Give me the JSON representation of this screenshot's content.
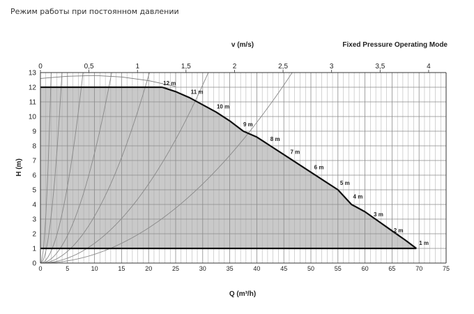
{
  "page_title": "Режим работы при постоянном давлении",
  "chart_data": {
    "type": "line",
    "title": "Fixed Pressure Operating Mode",
    "xlabel": "Q (m³/h)",
    "ylabel": "H (m)",
    "top_axis_label": "v (m/s)",
    "xlim": [
      0,
      75
    ],
    "ylim": [
      0,
      13
    ],
    "x_ticks": [
      "0",
      "5",
      "10",
      "15",
      "20",
      "25",
      "30",
      "35",
      "40",
      "45",
      "50",
      "55",
      "60",
      "65",
      "70",
      "75"
    ],
    "y_ticks": [
      "0",
      "1",
      "2",
      "3",
      "4",
      "5",
      "6",
      "7",
      "8",
      "9",
      "10",
      "11",
      "12",
      "13"
    ],
    "top_axis": {
      "range": [
        0,
        4.18
      ],
      "ticks": [
        {
          "value": 0,
          "label": "0"
        },
        {
          "value": 0.5,
          "label": "0,5"
        },
        {
          "value": 1,
          "label": "1"
        },
        {
          "value": 1.5,
          "label": "1,5"
        },
        {
          "value": 2,
          "label": "2"
        },
        {
          "value": 2.5,
          "label": "2,5"
        },
        {
          "value": 3,
          "label": "3"
        },
        {
          "value": 3.5,
          "label": "3,5"
        },
        {
          "value": 4,
          "label": "4"
        }
      ]
    },
    "grid": true,
    "operating_area": {
      "fill": "#c9c9c9",
      "boundary": [
        [
          0,
          12
        ],
        [
          22.5,
          12
        ],
        [
          25,
          11.7
        ],
        [
          27.5,
          11.3
        ],
        [
          30,
          10.8
        ],
        [
          32.5,
          10.3
        ],
        [
          35,
          9.7
        ],
        [
          37.5,
          9.0
        ],
        [
          40,
          8.6
        ],
        [
          42.5,
          8.0
        ],
        [
          45,
          7.4
        ],
        [
          47.5,
          6.8
        ],
        [
          50,
          6.2
        ],
        [
          52.5,
          5.6
        ],
        [
          55,
          5.0
        ],
        [
          57.5,
          4.0
        ],
        [
          60,
          3.5
        ],
        [
          62.5,
          2.85
        ],
        [
          65,
          2.2
        ],
        [
          67.5,
          1.55
        ],
        [
          69.5,
          1.0
        ],
        [
          0,
          1
        ]
      ]
    },
    "series": [
      {
        "name": "max_curve",
        "color": "#111111",
        "points": [
          [
            22.5,
            12
          ],
          [
            25,
            11.7
          ],
          [
            27.5,
            11.3
          ],
          [
            30,
            10.8
          ],
          [
            32.5,
            10.3
          ],
          [
            35,
            9.7
          ],
          [
            37.5,
            9.0
          ],
          [
            40,
            8.6
          ],
          [
            42.5,
            8.0
          ],
          [
            45,
            7.4
          ],
          [
            47.5,
            6.8
          ],
          [
            50,
            6.2
          ],
          [
            52.5,
            5.6
          ],
          [
            55,
            5.0
          ],
          [
            57.5,
            4.0
          ],
          [
            60,
            3.5
          ],
          [
            62.5,
            2.85
          ],
          [
            65,
            2.2
          ],
          [
            67.5,
            1.55
          ],
          [
            69.5,
            1.0
          ]
        ]
      },
      {
        "name": "12m_line",
        "color": "#111111",
        "points": [
          [
            0,
            12
          ],
          [
            22.5,
            12
          ]
        ]
      },
      {
        "name": "1m_line",
        "color": "#111111",
        "points": [
          [
            0,
            1
          ],
          [
            69.5,
            1
          ]
        ]
      },
      {
        "name": "upper_thin_curve",
        "color": "#777777",
        "points": [
          [
            0,
            12.6
          ],
          [
            5,
            12.75
          ],
          [
            10,
            12.8
          ],
          [
            15,
            12.7
          ],
          [
            20,
            12.45
          ],
          [
            25,
            12.05
          ]
        ]
      }
    ],
    "system_curves": [
      {
        "k": 3.3,
        "color": "#888888"
      },
      {
        "k": 0.82,
        "color": "#888888"
      },
      {
        "k": 0.21,
        "color": "#888888"
      },
      {
        "k": 0.075,
        "color": "#888888"
      },
      {
        "k": 0.032,
        "color": "#888888"
      },
      {
        "k": 0.0135,
        "color": "#888888"
      },
      {
        "k": 0.006,
        "color": "#888888"
      }
    ],
    "curve_labels": [
      {
        "text": "12 m",
        "x": 22.7,
        "y": 12.05
      },
      {
        "text": "11 m",
        "x": 27.8,
        "y": 11.45
      },
      {
        "text": "10 m",
        "x": 32.6,
        "y": 10.45
      },
      {
        "text": "9 m",
        "x": 37.5,
        "y": 9.25
      },
      {
        "text": "8 m",
        "x": 42.5,
        "y": 8.25
      },
      {
        "text": "7 m",
        "x": 46.2,
        "y": 7.35
      },
      {
        "text": "6 m",
        "x": 50.6,
        "y": 6.3
      },
      {
        "text": "5 m",
        "x": 55.4,
        "y": 5.25
      },
      {
        "text": "4 m",
        "x": 57.8,
        "y": 4.3
      },
      {
        "text": "3 m",
        "x": 61.6,
        "y": 3.1
      },
      {
        "text": "2 m",
        "x": 65.3,
        "y": 2.0
      },
      {
        "text": "1 m",
        "x": 70.0,
        "y": 1.15
      }
    ]
  }
}
